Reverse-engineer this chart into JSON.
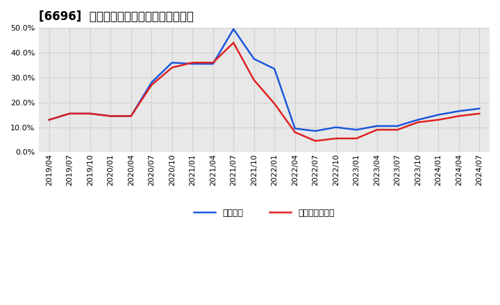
{
  "title": "[6696]  固定比率、固定長期適合率の推移",
  "blue_label": "固定比率",
  "red_label": "固定長期適合率",
  "dates": [
    "2019/04",
    "2019/07",
    "2019/10",
    "2020/01",
    "2020/04",
    "2020/07",
    "2020/10",
    "2021/01",
    "2021/04",
    "2021/07",
    "2021/10",
    "2022/01",
    "2022/04",
    "2022/07",
    "2022/10",
    "2023/01",
    "2023/04",
    "2023/07",
    "2023/10",
    "2024/01",
    "2024/04",
    "2024/07"
  ],
  "blue_values": [
    0.13,
    0.155,
    0.155,
    0.145,
    0.145,
    0.28,
    0.36,
    0.355,
    0.355,
    0.495,
    0.375,
    0.335,
    0.095,
    0.085,
    0.1,
    0.09,
    0.105,
    0.105,
    0.13,
    0.15,
    0.165,
    0.175
  ],
  "red_values": [
    0.13,
    0.155,
    0.155,
    0.145,
    0.145,
    0.27,
    0.34,
    0.36,
    0.36,
    0.44,
    0.29,
    0.195,
    0.08,
    0.045,
    0.055,
    0.055,
    0.09,
    0.09,
    0.12,
    0.13,
    0.145,
    0.155
  ],
  "ylim": [
    0.0,
    0.5
  ],
  "yticks": [
    0.0,
    0.1,
    0.2,
    0.3,
    0.4,
    0.5
  ],
  "blue_color": "#1a56db",
  "red_color": "#e02020",
  "bg_color": "#ffffff",
  "plot_bg_color": "#e8e8e8",
  "grid_color": "#aaaaaa",
  "title_fontsize": 12,
  "label_fontsize": 8,
  "legend_fontsize": 9
}
